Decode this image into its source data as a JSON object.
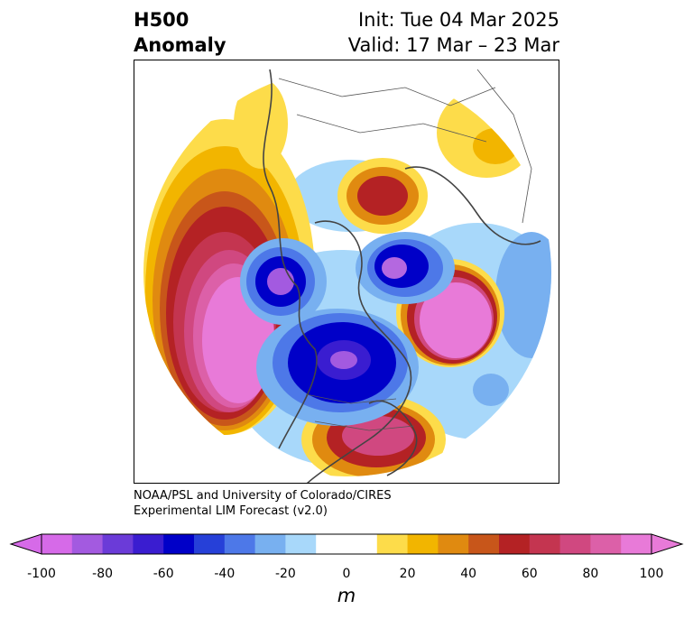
{
  "header": {
    "title_line1": "H500",
    "title_line2": "Anomaly",
    "init": "Init: Tue 04 Mar 2025",
    "valid": "Valid: 17 Mar – 23 Mar"
  },
  "credit": {
    "line1": "NOAA/PSL and University of Colorado/CIRES",
    "line2": "Experimental LIM Forecast (v2.0)"
  },
  "colorbar": {
    "unit": "m",
    "ticks": [
      "-100",
      "-80",
      "-60",
      "-40",
      "-20",
      "0",
      "20",
      "40",
      "60",
      "80",
      "100"
    ],
    "colors": [
      "#d66ae8",
      "#a35ae0",
      "#6b3bd8",
      "#3a1dd0",
      "#0000c8",
      "#2640d8",
      "#4d78e8",
      "#78b0f0",
      "#a8d8fa",
      "#ffffff",
      "#ffffff",
      "#fddc4a",
      "#f2b500",
      "#e08a10",
      "#c8561a",
      "#b42224",
      "#c43550",
      "#d04880",
      "#dc60a8",
      "#e87ad8"
    ]
  },
  "map_colors": {
    "ocean_outline": "#444444",
    "neg_light": "#a8d8fa",
    "neg_mid": "#4d78e8",
    "neg_deep": "#0000c8",
    "neg_core": "#b468e0",
    "pos_light": "#fddc4a",
    "pos_mid": "#e08a10",
    "pos_deep": "#b42224",
    "pos_core": "#e87ad8"
  }
}
